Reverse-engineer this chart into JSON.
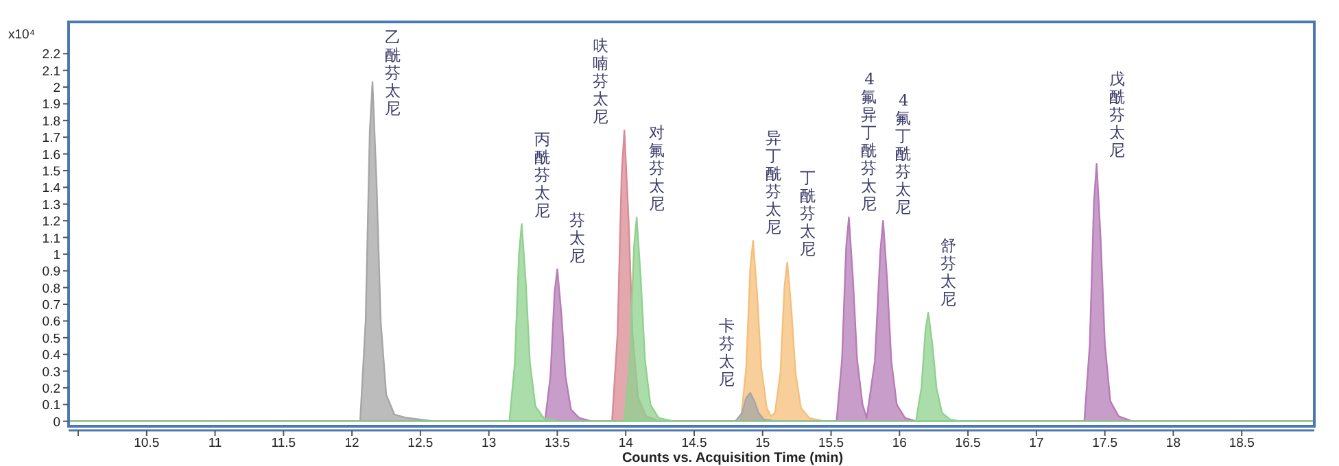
{
  "chart_data": {
    "type": "area",
    "xlabel": "Counts vs. Acquisition Time (min)",
    "ylabel": "x10⁴",
    "xlim": [
      9.93,
      19.03
    ],
    "ylim": [
      -0.03,
      2.39
    ],
    "xticks": [
      {
        "value": 10,
        "label": null
      },
      10.5,
      11,
      11.5,
      12,
      12.5,
      13,
      13.5,
      14,
      14.5,
      15,
      15.5,
      16,
      16.5,
      17,
      17.5,
      18,
      18.5
    ],
    "yticks": [
      0,
      0.1,
      0.2,
      0.3,
      0.4,
      0.5,
      0.6,
      0.7,
      0.8,
      0.9,
      1,
      1.1,
      1.2,
      1.3,
      1.4,
      1.5,
      1.6,
      1.7,
      1.8,
      1.9,
      2,
      2.1,
      2.2
    ],
    "series": [
      {
        "color": "#d98a93",
        "x": [
          9.93,
          13.9,
          13.94,
          13.97,
          13.99,
          14.02,
          14.05,
          14.09,
          14.15,
          14.25,
          19.03
        ],
        "values": [
          0,
          0,
          0.52,
          1.48,
          1.74,
          1.22,
          0.52,
          0.14,
          0.03,
          0,
          0
        ]
      },
      {
        "color": "#f5bf7a",
        "x": [
          9.93,
          14.84,
          14.88,
          14.91,
          14.93,
          14.96,
          14.99,
          15.03,
          15.06,
          15.09,
          15.13,
          15.16,
          15.18,
          15.21,
          15.24,
          15.28,
          15.34,
          15.45,
          19.03
        ],
        "values": [
          0,
          0,
          0.32,
          0.92,
          1.08,
          0.76,
          0.32,
          0.08,
          0.03,
          0.05,
          0.29,
          0.81,
          0.95,
          0.67,
          0.29,
          0.08,
          0.02,
          0,
          0
        ]
      },
      {
        "color": "#a6a6a6",
        "x": [
          9.93,
          12.06,
          12.1,
          12.13,
          12.15,
          12.18,
          12.21,
          12.25,
          12.31,
          12.4,
          12.6,
          14.8,
          14.85,
          14.88,
          14.91,
          14.94,
          14.97,
          15.01,
          15.1,
          19.03
        ],
        "values": [
          0,
          0,
          0.6,
          1.73,
          2.03,
          1.42,
          0.6,
          0.16,
          0.04,
          0.02,
          0,
          0,
          0.05,
          0.14,
          0.17,
          0.12,
          0.05,
          0.01,
          0,
          0
        ]
      },
      {
        "color": "#b77cb8",
        "x": [
          9.93,
          13.41,
          13.45,
          13.48,
          13.5,
          13.53,
          13.56,
          13.6,
          13.66,
          13.75,
          15.54,
          15.58,
          15.61,
          15.63,
          15.66,
          15.69,
          15.73,
          15.76,
          15.82,
          15.86,
          15.88,
          15.91,
          15.94,
          15.98,
          16.04,
          16.12,
          17.35,
          17.39,
          17.42,
          17.44,
          17.47,
          17.5,
          17.54,
          17.6,
          17.7,
          19.03
        ],
        "values": [
          0,
          0,
          0.27,
          0.77,
          0.91,
          0.64,
          0.27,
          0.07,
          0.02,
          0,
          0,
          0.37,
          1.04,
          1.22,
          0.85,
          0.37,
          0.1,
          0.02,
          0.36,
          1.02,
          1.2,
          0.84,
          0.36,
          0.1,
          0.02,
          0,
          0,
          0.46,
          1.31,
          1.54,
          1.08,
          0.46,
          0.12,
          0.03,
          0,
          0
        ]
      },
      {
        "color": "#8fd18f",
        "x": [
          9.93,
          13.15,
          13.19,
          13.22,
          13.24,
          13.27,
          13.3,
          13.34,
          13.4,
          13.5,
          13.99,
          14.03,
          14.06,
          14.08,
          14.11,
          14.14,
          14.18,
          14.24,
          14.35,
          16.12,
          16.16,
          16.19,
          16.21,
          16.24,
          16.27,
          16.31,
          16.37,
          16.45,
          19.03
        ],
        "values": [
          0,
          0,
          0.35,
          1.0,
          1.18,
          0.83,
          0.35,
          0.09,
          0.02,
          0,
          0,
          0.37,
          1.04,
          1.22,
          0.85,
          0.37,
          0.1,
          0.02,
          0,
          0,
          0.2,
          0.55,
          0.65,
          0.46,
          0.2,
          0.05,
          0.01,
          0,
          0
        ]
      }
    ],
    "annotations": [
      {
        "text": "乙酰芬太尼",
        "x": 12.15,
        "y": 2.03
      },
      {
        "text": "丙酰芬太尼",
        "x": 13.24,
        "y": 1.18
      },
      {
        "text": "芬太尼",
        "x": 13.5,
        "y": 0.91
      },
      {
        "text": "呋喃芬太尼",
        "x": 13.99,
        "y": 1.74
      },
      {
        "text": "对氟芬太尼",
        "x": 14.08,
        "y": 1.22
      },
      {
        "text": "卡芬太尼",
        "x": 14.91,
        "y": 0.17
      },
      {
        "text": "异丁酰芬太尼",
        "x": 14.93,
        "y": 1.08
      },
      {
        "text": "丁酰芬太尼",
        "x": 15.18,
        "y": 0.95
      },
      {
        "text": "4氟异丁酰芬太尼",
        "x": 15.63,
        "y": 1.22
      },
      {
        "text": "4氟丁酰芬太尼",
        "x": 15.88,
        "y": 1.2
      },
      {
        "text": "舒芬太尼",
        "x": 16.21,
        "y": 0.65
      },
      {
        "text": "戊酰芬太尼",
        "x": 17.44,
        "y": 1.54
      }
    ]
  }
}
